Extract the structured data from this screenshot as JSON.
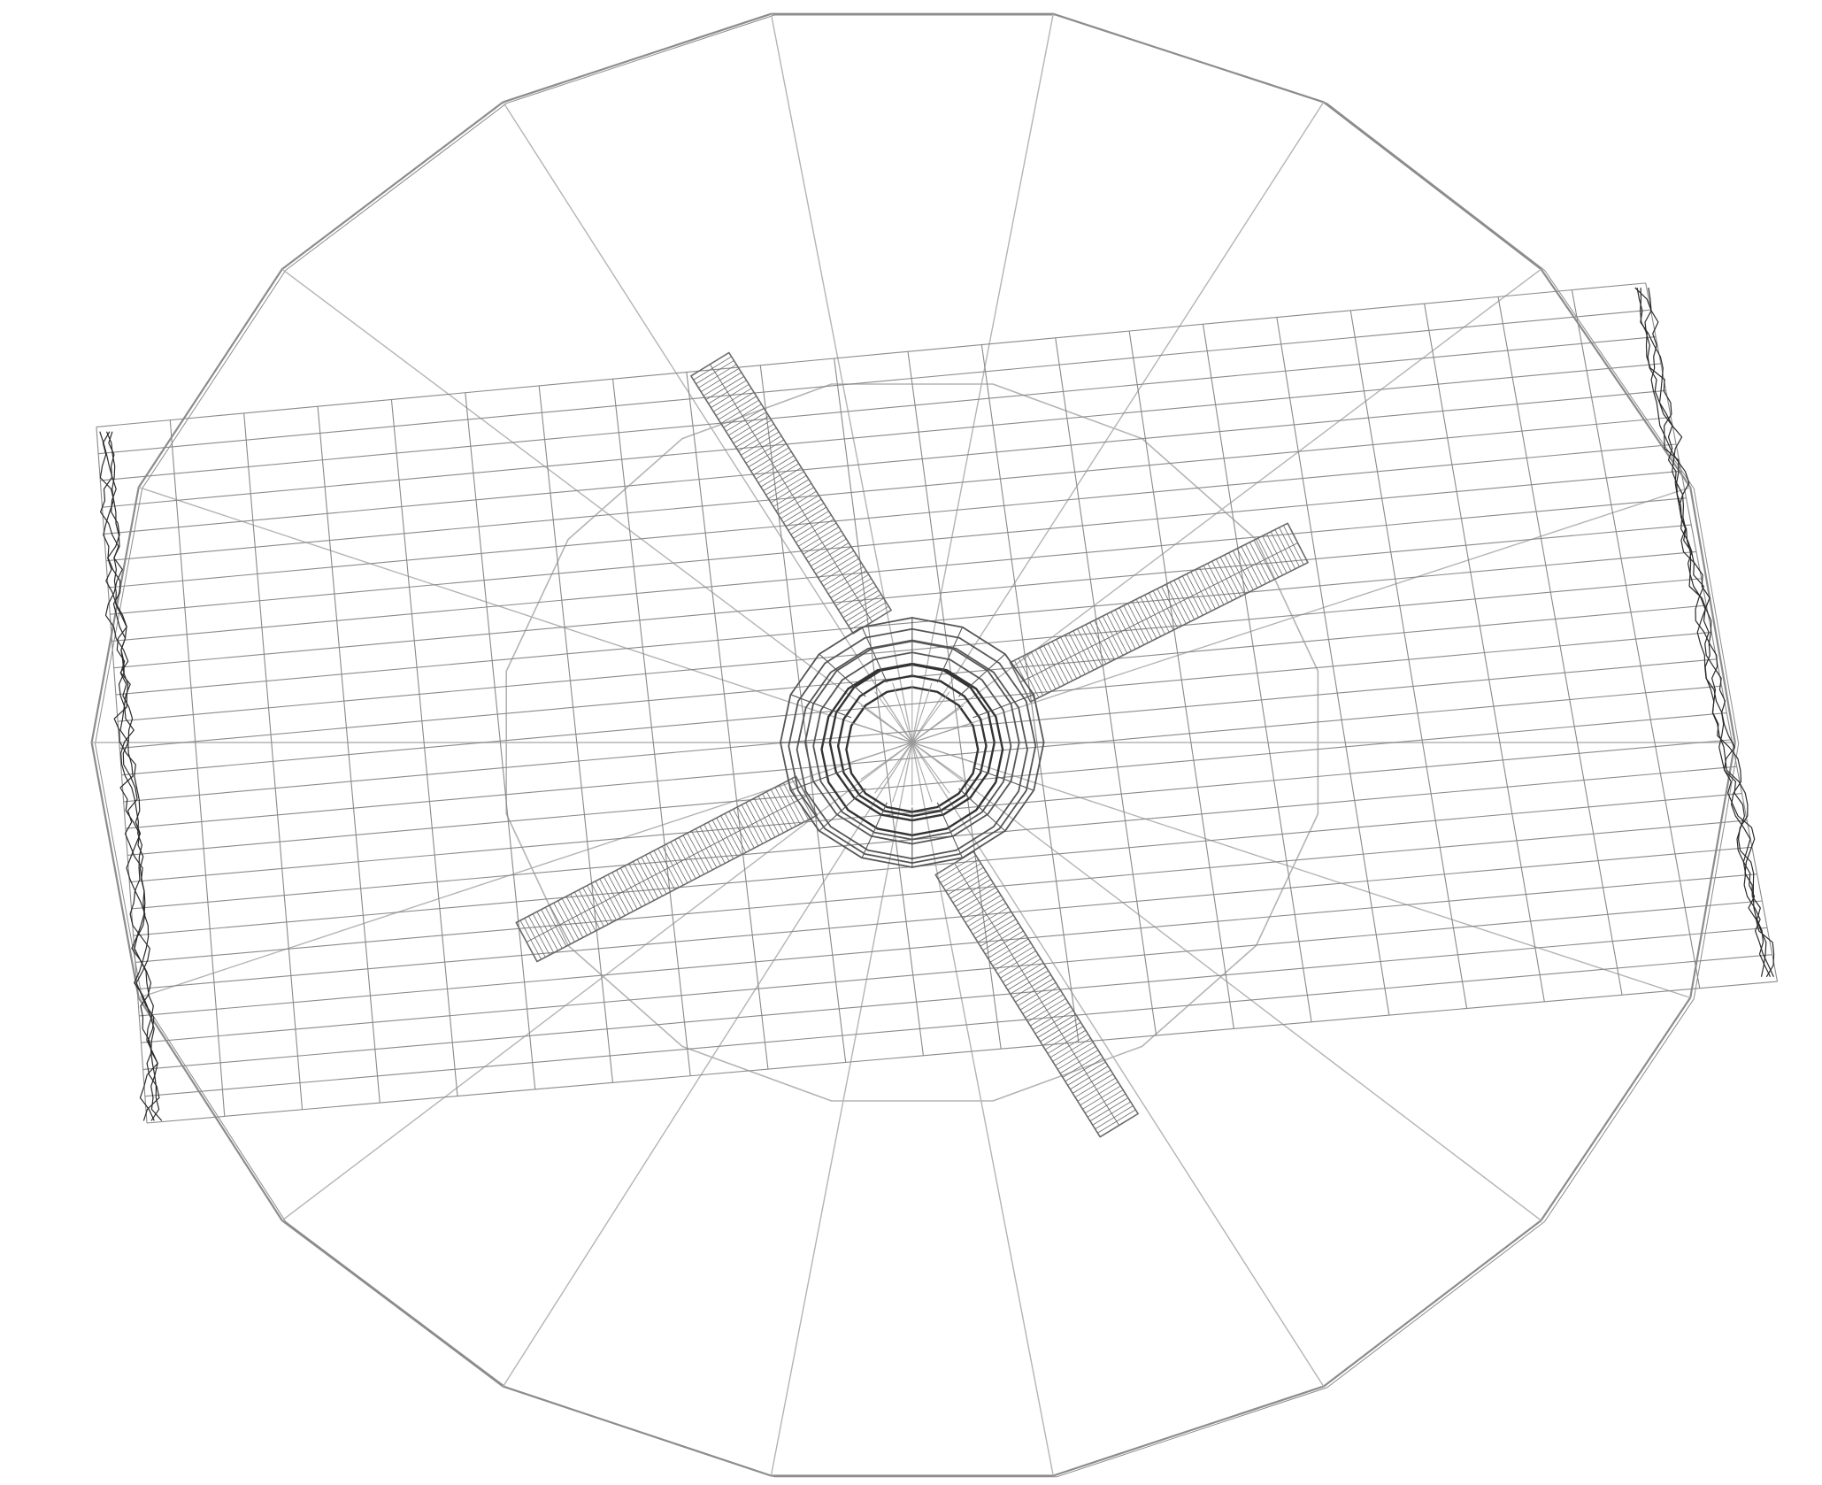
{
  "scene": {
    "description_visible_text": "",
    "colors": {
      "background": "#ffffff",
      "outer_polygon": "#8c8c8c",
      "radial_spokes": "#b4b4b4",
      "inner_polygon": "#b4b4b4",
      "grid_sheet": "#8a8a8a",
      "grid_edge_ragged": "#2a2a2a",
      "blades": "#6a6a6a",
      "hub": "#555555"
    },
    "outer_polygon_sides": 16,
    "inner_polygon_sides": 16,
    "hub_rings": 9,
    "hub_ring_sides": 16,
    "hub_spokes": 20,
    "blade_count": 4,
    "grid_columns": 21,
    "grid_rows": 26
  }
}
